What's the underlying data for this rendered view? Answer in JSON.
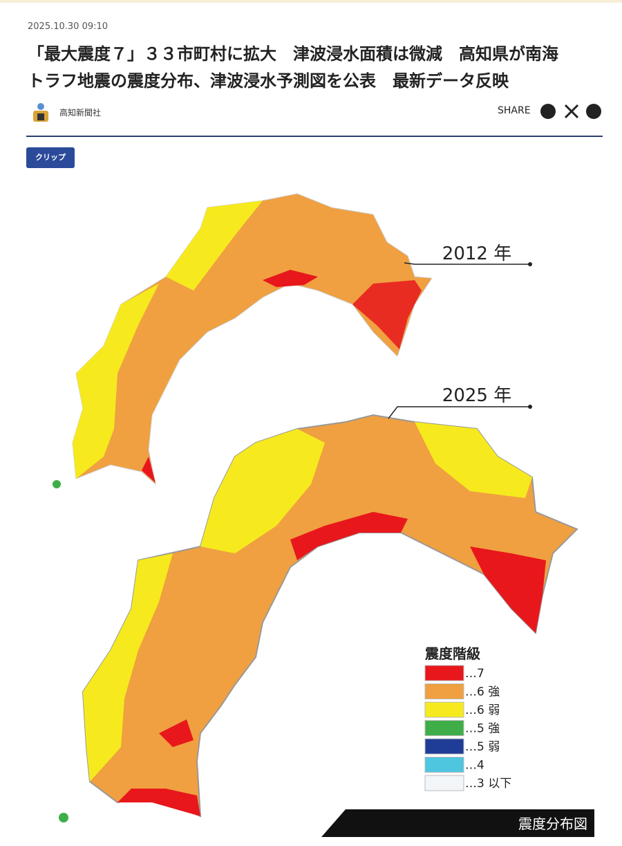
{
  "header": {
    "date": "2025.10.30 09:10",
    "title": [
      "「最大震度７」３３市町村に拡大　津波浸水面積は微減　高知県が南海",
      "トラフ地震の震度分布、津波浸水予測図を公表　最新データ反映"
    ],
    "publisher": "高知新聞社",
    "share": "SHARE",
    "clip": "クリップ"
  },
  "map": {
    "labels": [
      "2012 年",
      "2025 年"
    ],
    "legend": {
      "title": "震度階級",
      "items": [
        {
          "label": "…7",
          "color": "#e8171c"
        },
        {
          "label": "…6 強",
          "color": "#f0a040"
        },
        {
          "label": "…6 弱",
          "color": "#f6ea1e"
        },
        {
          "label": "…5 強",
          "color": "#3fae49"
        },
        {
          "label": "…5 弱",
          "color": "#1f3c96"
        },
        {
          "label": "…4",
          "color": "#4fc6e0"
        },
        {
          "label": "…3 以下",
          "color": "#f2f6f8"
        }
      ]
    },
    "caption": "震度分布図"
  }
}
